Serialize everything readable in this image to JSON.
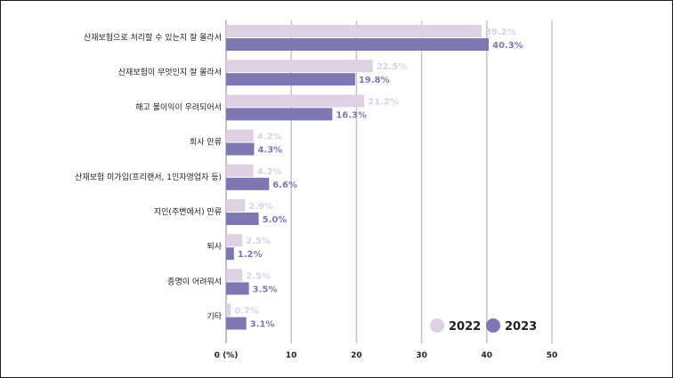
{
  "chart_data": {
    "type": "bar",
    "orientation": "horizontal",
    "categories": [
      "산재보험으로 처리할 수 있는지 잘 몰라서",
      "산재보험이 무엇인지 잘 몰라서",
      "해고 불이익이 우려되어서",
      "회사 만류",
      "산재보험 미가입(프리랜서, 1인자영업자 등)",
      "지인(주변에서) 만류",
      "퇴사",
      "증명이 어려워서",
      "기타"
    ],
    "series": [
      {
        "name": "2022",
        "color": "#ddd1e3",
        "values": [
          39.2,
          22.5,
          21.2,
          4.2,
          4.2,
          2.9,
          2.5,
          2.5,
          0.7
        ],
        "labels": [
          "39.2%",
          "22.5%",
          "21.2%",
          "4.2%",
          "4.2%",
          "2.9%",
          "2.5%",
          "2.5%",
          "0.7%"
        ]
      },
      {
        "name": "2023",
        "color": "#7f77b2",
        "values": [
          40.3,
          19.8,
          16.3,
          4.3,
          6.6,
          5.0,
          1.2,
          3.5,
          3.1
        ],
        "labels": [
          "40.3%",
          "19.8%",
          "16.3%",
          "4.3%",
          "6.6%",
          "5.0%",
          "1.2%",
          "3.5%",
          "3.1%"
        ]
      }
    ],
    "xticks": [
      "0 (%)",
      "10",
      "20",
      "30",
      "40",
      "50"
    ],
    "xlim": [
      0,
      50
    ],
    "grid": true,
    "legend": "bottom-right"
  }
}
